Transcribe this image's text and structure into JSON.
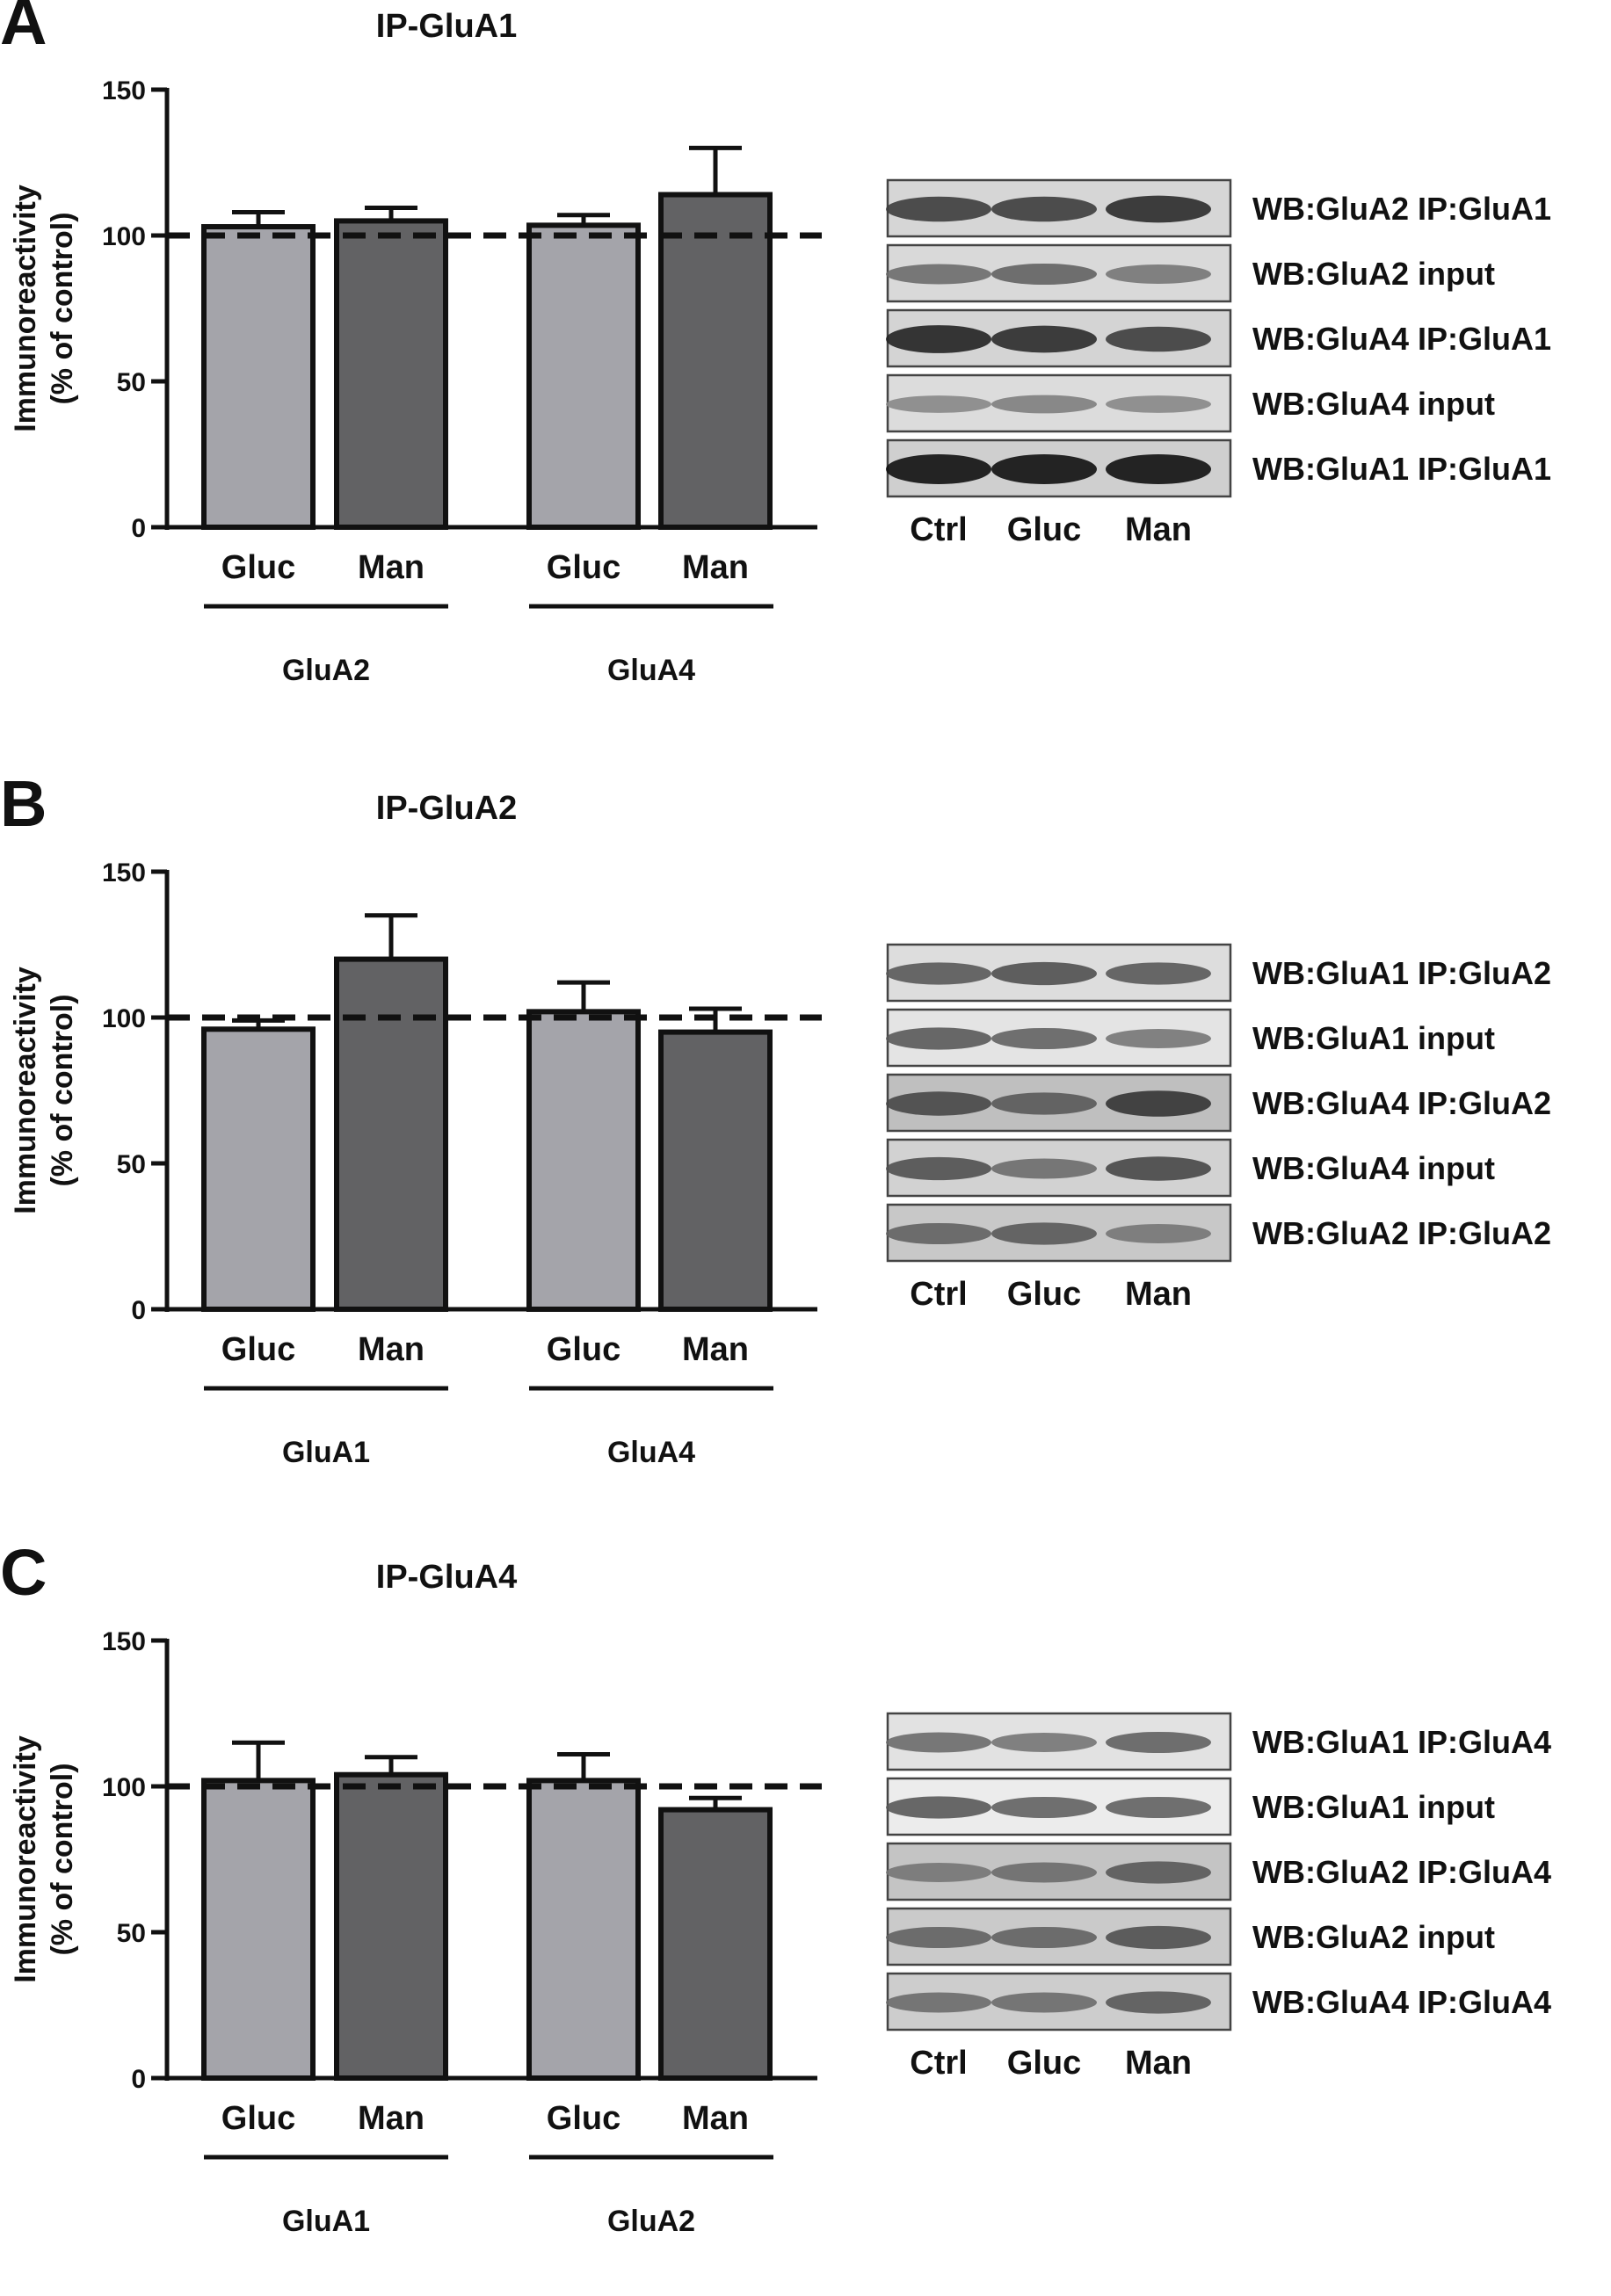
{
  "chart_data": [
    {
      "panel_letter": "A",
      "type": "bar",
      "title": "IP-GluA1",
      "ylabel_line1": "Immunoreactivity",
      "ylabel_line2": "(% of control)",
      "ylim": [
        0,
        150
      ],
      "yticks": [
        0,
        50,
        100,
        150
      ],
      "reference_line": 100,
      "categories": [
        "Gluc",
        "Man",
        "Gluc",
        "Man"
      ],
      "groups": [
        "GluA2",
        "GluA4"
      ],
      "values": [
        103,
        105,
        103.5,
        114
      ],
      "errors": [
        5,
        4.5,
        3.5,
        16
      ],
      "colors": [
        "#a4a4aa",
        "#626264",
        "#a4a4aa",
        "#626264"
      ],
      "blot_rows": [
        {
          "label": "WB:GluA2  IP:GluA1",
          "band_shades": [
            0.75,
            0.75,
            0.85
          ],
          "bg": "#d6d6d6"
        },
        {
          "label": "WB:GluA2  input",
          "band_shades": [
            0.5,
            0.55,
            0.45
          ],
          "bg": "#d9d9d9"
        },
        {
          "label": "WB:GluA4  IP:GluA1",
          "band_shades": [
            0.9,
            0.85,
            0.75
          ],
          "bg": "#d4d4d4"
        },
        {
          "label": "WB:GluA4  input",
          "band_shades": [
            0.35,
            0.4,
            0.35
          ],
          "bg": "#dcdcdc"
        },
        {
          "label": "WB:GluA1  IP:GluA1",
          "band_shades": [
            1.0,
            1.0,
            1.0
          ],
          "bg": "#cfcfcf"
        }
      ],
      "blot_lanes": [
        "Ctrl",
        "Gluc",
        "Man"
      ]
    },
    {
      "panel_letter": "B",
      "type": "bar",
      "title": "IP-GluA2",
      "ylabel_line1": "Immunoreactivity",
      "ylabel_line2": "(% of control)",
      "ylim": [
        0,
        150
      ],
      "yticks": [
        0,
        50,
        100,
        150
      ],
      "reference_line": 100,
      "categories": [
        "Gluc",
        "Man",
        "Gluc",
        "Man"
      ],
      "groups": [
        "GluA1",
        "GluA4"
      ],
      "values": [
        96,
        120,
        102,
        95
      ],
      "errors": [
        3,
        15,
        10,
        8
      ],
      "colors": [
        "#a4a4aa",
        "#626264",
        "#a4a4aa",
        "#626264"
      ],
      "blot_rows": [
        {
          "label": "WB:GluA1  IP:GluA2",
          "band_shades": [
            0.6,
            0.65,
            0.6
          ],
          "bg": "#dddddd"
        },
        {
          "label": "WB:GluA1  input",
          "band_shades": [
            0.6,
            0.55,
            0.45
          ],
          "bg": "#e4e4e4"
        },
        {
          "label": "WB:GluA4  IP:GluA2",
          "band_shades": [
            0.7,
            0.6,
            0.8
          ],
          "bg": "#bfbfbf"
        },
        {
          "label": "WB:GluA4  input",
          "band_shades": [
            0.65,
            0.5,
            0.7
          ],
          "bg": "#d2d2d2"
        },
        {
          "label": "WB:GluA2  IP:GluA2",
          "band_shades": [
            0.55,
            0.6,
            0.45
          ],
          "bg": "#c8c8c8"
        }
      ],
      "blot_lanes": [
        "Ctrl",
        "Gluc",
        "Man"
      ]
    },
    {
      "panel_letter": "C",
      "type": "bar",
      "title": "IP-GluA4",
      "ylabel_line1": "Immunoreactivity",
      "ylabel_line2": "(% of control)",
      "ylim": [
        0,
        150
      ],
      "yticks": [
        0,
        50,
        100,
        150
      ],
      "reference_line": 100,
      "categories": [
        "Gluc",
        "Man",
        "Gluc",
        "Man"
      ],
      "groups": [
        "GluA1",
        "GluA2"
      ],
      "values": [
        102,
        104,
        102,
        92
      ],
      "errors": [
        13,
        6,
        9,
        4
      ],
      "colors": [
        "#a4a4aa",
        "#626264",
        "#a4a4aa",
        "#626264"
      ],
      "blot_rows": [
        {
          "label": "WB:GluA1  IP:GluA4",
          "band_shades": [
            0.5,
            0.45,
            0.55
          ],
          "bg": "#e2e2e2"
        },
        {
          "label": "WB:GluA1  input",
          "band_shades": [
            0.6,
            0.55,
            0.55
          ],
          "bg": "#ececec"
        },
        {
          "label": "WB:GluA2  IP:GluA4",
          "band_shades": [
            0.45,
            0.5,
            0.6
          ],
          "bg": "#c4c4c4"
        },
        {
          "label": "WB:GluA2  input",
          "band_shades": [
            0.55,
            0.55,
            0.65
          ],
          "bg": "#cacaca"
        },
        {
          "label": "WB:GluA4  IP:GluA4",
          "band_shades": [
            0.5,
            0.5,
            0.6
          ],
          "bg": "#cdcdcd"
        }
      ],
      "blot_lanes": [
        "Ctrl",
        "Gluc",
        "Man"
      ]
    }
  ]
}
